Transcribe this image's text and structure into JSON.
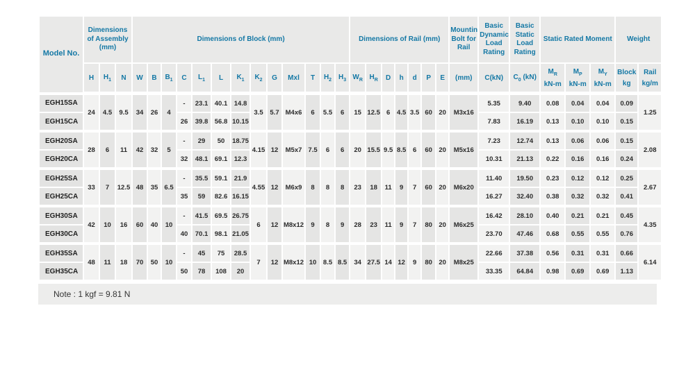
{
  "note": "Note : 1 kgf = 9.81 N",
  "colors": {
    "header_text": "#1478a5",
    "data_text": "#2b2b2b"
  },
  "table": {
    "groups_header": [
      {
        "label": "Model No.",
        "span": 1,
        "rowspan": 2
      },
      {
        "label": "Dimensions of Assembly (mm)",
        "span": 3
      },
      {
        "label": "Dimensions of Block (mm)",
        "span": 13
      },
      {
        "label": "Dimensions of Rail (mm)",
        "span": 7
      },
      {
        "label": "Mounting Bolt for Rail",
        "span": 1
      },
      {
        "label": "Basic Dynamic Load Rating",
        "span": 1
      },
      {
        "label": "Basic Static Load Rating",
        "span": 1
      },
      {
        "label": "Static Rated Moment",
        "span": 3
      },
      {
        "label": "Weight",
        "span": 2
      }
    ],
    "sub_headers": [
      {
        "base": "H"
      },
      {
        "base": "H",
        "sub": "1"
      },
      {
        "base": "N"
      },
      {
        "base": "W"
      },
      {
        "base": "B"
      },
      {
        "base": "B",
        "sub": "1"
      },
      {
        "base": "C"
      },
      {
        "base": "L",
        "sub": "1"
      },
      {
        "base": "L"
      },
      {
        "base": "K",
        "sub": "1"
      },
      {
        "base": "K",
        "sub": "2"
      },
      {
        "base": "G"
      },
      {
        "base": "Mxl"
      },
      {
        "base": "T"
      },
      {
        "base": "H",
        "sub": "2"
      },
      {
        "base": "H",
        "sub": "3"
      },
      {
        "base": "W",
        "sub": "R"
      },
      {
        "base": "H",
        "sub": "R"
      },
      {
        "base": "D"
      },
      {
        "base": "h"
      },
      {
        "base": "d"
      },
      {
        "base": "P"
      },
      {
        "base": "E"
      },
      {
        "base": "(mm)"
      },
      {
        "base": "C(kN)"
      },
      {
        "base": "C",
        "sub": "0",
        "after": " (kN)"
      },
      {
        "base": "M",
        "sub": "R",
        "unit": "kN-m"
      },
      {
        "base": "M",
        "sub": "P",
        "unit": "kN-m"
      },
      {
        "base": "M",
        "sub": "Y",
        "unit": "kN-m"
      },
      {
        "base": "Block",
        "unit": "kg"
      },
      {
        "base": "Rail",
        "unit": "kg/m"
      }
    ],
    "groups": [
      {
        "models": [
          "EGH15SA",
          "EGH15CA"
        ],
        "merged_left": [
          "24",
          "4.5",
          "9.5",
          "34",
          "26",
          "4"
        ],
        "rows_block": [
          [
            "-",
            "23.1",
            "40.1",
            "14.8"
          ],
          [
            "26",
            "39.8",
            "56.8",
            "10.15"
          ]
        ],
        "merged_mid": [
          "3.5",
          "5.7",
          "M4x6",
          "6",
          "5.5",
          "6",
          "15",
          "12.5",
          "6",
          "4.5",
          "3.5",
          "60",
          "20",
          "M3x16"
        ],
        "rows_load": [
          [
            "5.35",
            "9.40",
            "0.08",
            "0.04",
            "0.04",
            "0.09"
          ],
          [
            "7.83",
            "16.19",
            "0.13",
            "0.10",
            "0.10",
            "0.15"
          ]
        ],
        "rail_weight": "1.25"
      },
      {
        "models": [
          "EGH20SA",
          "EGH20CA"
        ],
        "merged_left": [
          "28",
          "6",
          "11",
          "42",
          "32",
          "5"
        ],
        "rows_block": [
          [
            "-",
            "29",
            "50",
            "18.75"
          ],
          [
            "32",
            "48.1",
            "69.1",
            "12.3"
          ]
        ],
        "merged_mid": [
          "4.15",
          "12",
          "M5x7",
          "7.5",
          "6",
          "6",
          "20",
          "15.5",
          "9.5",
          "8.5",
          "6",
          "60",
          "20",
          "M5x16"
        ],
        "rows_load": [
          [
            "7.23",
            "12.74",
            "0.13",
            "0.06",
            "0.06",
            "0.15"
          ],
          [
            "10.31",
            "21.13",
            "0.22",
            "0.16",
            "0.16",
            "0.24"
          ]
        ],
        "rail_weight": "2.08"
      },
      {
        "models": [
          "EGH25SA",
          "EGH25CA"
        ],
        "merged_left": [
          "33",
          "7",
          "12.5",
          "48",
          "35",
          "6.5"
        ],
        "rows_block": [
          [
            "-",
            "35.5",
            "59.1",
            "21.9"
          ],
          [
            "35",
            "59",
            "82.6",
            "16.15"
          ]
        ],
        "merged_mid": [
          "4.55",
          "12",
          "M6x9",
          "8",
          "8",
          "8",
          "23",
          "18",
          "11",
          "9",
          "7",
          "60",
          "20",
          "M6x20"
        ],
        "rows_load": [
          [
            "11.40",
            "19.50",
            "0.23",
            "0.12",
            "0.12",
            "0.25"
          ],
          [
            "16.27",
            "32.40",
            "0.38",
            "0.32",
            "0.32",
            "0.41"
          ]
        ],
        "rail_weight": "2.67"
      },
      {
        "models": [
          "EGH30SA",
          "EGH30CA"
        ],
        "merged_left": [
          "42",
          "10",
          "16",
          "60",
          "40",
          "10"
        ],
        "rows_block": [
          [
            "-",
            "41.5",
            "69.5",
            "26.75"
          ],
          [
            "40",
            "70.1",
            "98.1",
            "21.05"
          ]
        ],
        "merged_mid": [
          "6",
          "12",
          "M8x12",
          "9",
          "8",
          "9",
          "28",
          "23",
          "11",
          "9",
          "7",
          "80",
          "20",
          "M6x25"
        ],
        "rows_load": [
          [
            "16.42",
            "28.10",
            "0.40",
            "0.21",
            "0.21",
            "0.45"
          ],
          [
            "23.70",
            "47.46",
            "0.68",
            "0.55",
            "0.55",
            "0.76"
          ]
        ],
        "rail_weight": "4.35"
      },
      {
        "models": [
          "EGH35SA",
          "EGH35CA"
        ],
        "merged_left": [
          "48",
          "11",
          "18",
          "70",
          "50",
          "10"
        ],
        "rows_block": [
          [
            "-",
            "45",
            "75",
            "28.5"
          ],
          [
            "50",
            "78",
            "108",
            "20"
          ]
        ],
        "merged_mid": [
          "7",
          "12",
          "M8x12",
          "10",
          "8.5",
          "8.5",
          "34",
          "27.5",
          "14",
          "12",
          "9",
          "80",
          "20",
          "M8x25"
        ],
        "rows_load": [
          [
            "22.66",
            "37.38",
            "0.56",
            "0.31",
            "0.31",
            "0.66"
          ],
          [
            "33.35",
            "64.84",
            "0.98",
            "0.69",
            "0.69",
            "1.13"
          ]
        ],
        "rail_weight": "6.14"
      }
    ]
  }
}
